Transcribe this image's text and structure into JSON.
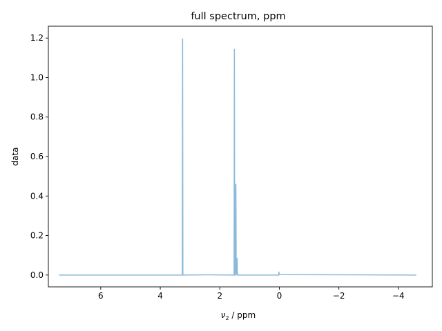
{
  "chart_data": {
    "type": "line",
    "title": "full spectrum, ppm",
    "xlabel_symbol": "ν",
    "xlabel_subscript": "2",
    "xlabel_unit": " / ppm",
    "ylabel": "data",
    "x_inverted": true,
    "xlim": [
      7.76,
      -5.14
    ],
    "ylim": [
      -0.06,
      1.26
    ],
    "grid": false,
    "x_ticks": [
      6,
      4,
      2,
      0,
      -2,
      -4
    ],
    "x_tick_labels": [
      "6",
      "4",
      "2",
      "0",
      "−2",
      "−4"
    ],
    "y_ticks": [
      0.0,
      0.2,
      0.4,
      0.6,
      0.8,
      1.0,
      1.2
    ],
    "y_tick_labels": [
      "0.0",
      "0.2",
      "0.4",
      "0.6",
      "0.8",
      "1.0",
      "1.2"
    ],
    "series": [
      {
        "color": "#8ab9d9",
        "x": [
          7.4,
          3.26,
          3.255,
          3.25,
          3.245,
          3.24,
          2.4,
          1.52,
          1.515,
          1.51,
          1.505,
          1.5,
          1.47,
          1.465,
          1.46,
          1.455,
          1.45,
          1.42,
          1.415,
          1.41,
          1.4,
          0.02,
          0.015,
          0.01,
          0.005,
          0.0,
          -4.6
        ],
        "values": [
          0.0,
          0.0,
          0.6,
          1.195,
          0.6,
          0.0,
          0.001,
          0.0,
          0.57,
          1.143,
          0.57,
          0.0,
          0.0,
          0.46,
          0.457,
          0.3,
          0.02,
          0.0,
          0.085,
          0.02,
          0.0,
          0.0,
          0.015,
          0.012,
          0.004,
          0.002,
          0.0
        ]
      }
    ]
  }
}
